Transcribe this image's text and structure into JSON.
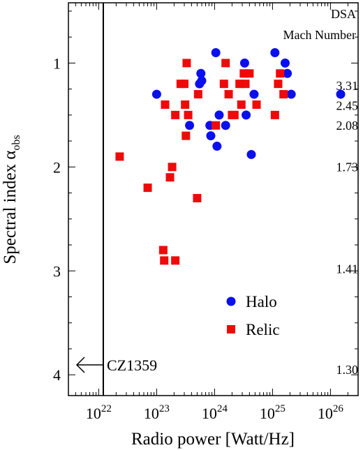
{
  "chart_data": {
    "type": "scatter",
    "xlabel": "Radio power [Watt/Hz]",
    "ylabel_main": "Spectral index α",
    "ylabel_sub": "obs",
    "x_scale": "log",
    "xlim": [
      3e+21,
      3e+26
    ],
    "ylim": [
      0.42,
      4.2
    ],
    "y_inverted": true,
    "x_ticks": [
      {
        "value": 1e+22,
        "base": "10",
        "exp": "22"
      },
      {
        "value": 1e+23,
        "base": "10",
        "exp": "23"
      },
      {
        "value": 1e+24,
        "base": "10",
        "exp": "24"
      },
      {
        "value": 1e+25,
        "base": "10",
        "exp": "25"
      },
      {
        "value": 1e+26,
        "base": "10",
        "exp": "26"
      }
    ],
    "y_ticks": [
      {
        "value": 1,
        "label": "1"
      },
      {
        "value": 2,
        "label": "2"
      },
      {
        "value": 3,
        "label": "3"
      },
      {
        "value": 4,
        "label": "4"
      }
    ],
    "mach_header": [
      "DSA",
      "Mach Number"
    ],
    "mach_labels": [
      {
        "y": 1.22,
        "label": "3.31"
      },
      {
        "y": 1.41,
        "label": "2.45"
      },
      {
        "y": 1.6,
        "label": "2.08"
      },
      {
        "y": 2.0,
        "label": "1.73"
      },
      {
        "y": 2.98,
        "label": "1.41"
      },
      {
        "y": 3.95,
        "label": "1.30"
      }
    ],
    "vertical_line_x": 1.2e+22,
    "annotation": {
      "text": "CZ1359",
      "y": 3.9
    },
    "series": [
      {
        "name": "Halo",
        "marker": "circle",
        "color": "#0a0ff0",
        "points": [
          [
            1e+23,
            1.3
          ],
          [
            3.7e+23,
            1.6
          ],
          [
            5.8e+23,
            1.1
          ],
          [
            6e+23,
            1.17
          ],
          [
            5.5e+23,
            1.2
          ],
          [
            8.3e+23,
            1.6
          ],
          [
            8.6e+23,
            1.7
          ],
          [
            1.05e+24,
            0.9
          ],
          [
            1.1e+24,
            1.8
          ],
          [
            1.2e+24,
            1.5
          ],
          [
            1.55e+24,
            1.6
          ],
          [
            3.3e+24,
            1.0
          ],
          [
            3.5e+24,
            1.5
          ],
          [
            4.3e+24,
            1.88
          ],
          [
            4.8e+24,
            1.3
          ],
          [
            1.1e+25,
            0.9
          ],
          [
            1.65e+25,
            1.0
          ],
          [
            1.8e+25,
            1.1
          ],
          [
            2.1e+25,
            1.3
          ],
          [
            1.5e+26,
            1.3
          ]
        ]
      },
      {
        "name": "Relic",
        "marker": "square",
        "color": "#ef0a0a",
        "points": [
          [
            2.3e+22,
            1.9
          ],
          [
            7e+22,
            2.2
          ],
          [
            1.3e+23,
            2.8
          ],
          [
            1.35e+23,
            2.9
          ],
          [
            1.4e+23,
            1.4
          ],
          [
            1.7e+23,
            2.1
          ],
          [
            1.85e+23,
            2.0
          ],
          [
            2.1e+23,
            1.5
          ],
          [
            2.1e+23,
            2.9
          ],
          [
            2.6e+23,
            1.2
          ],
          [
            3e+23,
            1.2
          ],
          [
            3.1e+23,
            1.4
          ],
          [
            3.3e+23,
            1.0
          ],
          [
            3.5e+23,
            1.5
          ],
          [
            3.2e+23,
            1.7
          ],
          [
            5e+23,
            2.3
          ],
          [
            5.2e+23,
            1.3
          ],
          [
            1.05e+24,
            1.6
          ],
          [
            1.45e+24,
            1.2
          ],
          [
            1.55e+24,
            1.0
          ],
          [
            1.75e+24,
            1.3
          ],
          [
            2e+24,
            1.5
          ],
          [
            2.2e+24,
            1.5
          ],
          [
            2.7e+24,
            1.2
          ],
          [
            2.9e+24,
            1.4
          ],
          [
            3.2e+24,
            1.1
          ],
          [
            3.4e+24,
            1.2
          ],
          [
            4e+24,
            1.1
          ],
          [
            5.3e+24,
            1.4
          ],
          [
            1.1e+25,
            1.5
          ],
          [
            1.25e+25,
            1.2
          ],
          [
            1.35e+25,
            1.1
          ],
          [
            1.55e+25,
            1.3
          ]
        ]
      }
    ],
    "legend": [
      {
        "name": "Halo",
        "marker": "circle",
        "color": "#0a0ff0"
      },
      {
        "name": "Relic",
        "marker": "square",
        "color": "#ef0a0a"
      }
    ],
    "legend_placement": "lower-right"
  }
}
